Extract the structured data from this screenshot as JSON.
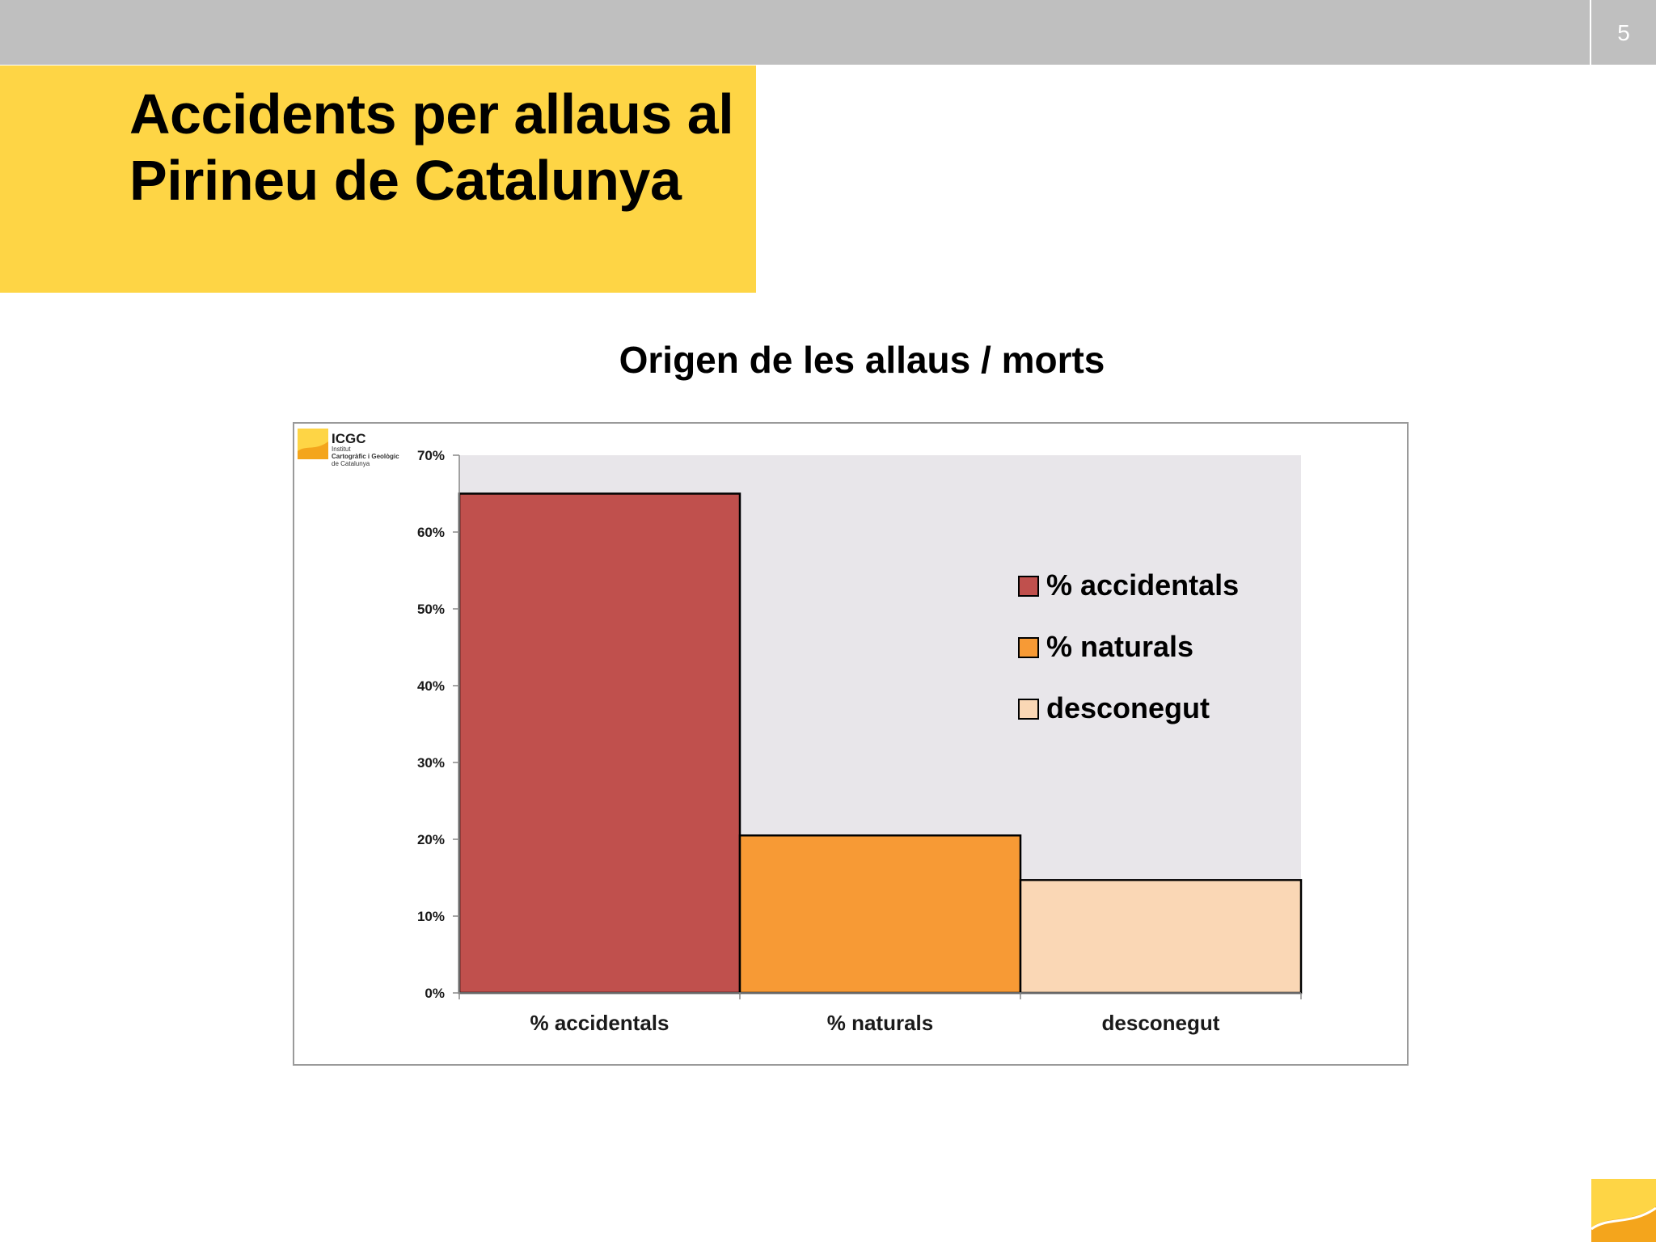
{
  "slide": {
    "page_number": "5",
    "title": "Accidents per allaus al Pirineu de Catalunya",
    "colors": {
      "topbar": "#bfbfbf",
      "title_box": "#fed545",
      "accent": "#f4a51c"
    }
  },
  "logo": {
    "name": "ICGC",
    "line1": "Institut",
    "line2": "Cartogràfic i Geològic",
    "line3": "de Catalunya",
    "icon": "icgc-logo-icon"
  },
  "chart_data": {
    "type": "bar",
    "title": "Origen de les allaus / morts",
    "categories": [
      "% accidentals",
      "% naturals",
      "desconegut"
    ],
    "values": [
      0.65,
      0.205,
      0.147
    ],
    "colors": [
      "#c0504d",
      "#f79a35",
      "#fad7b5"
    ],
    "ylim": [
      0,
      0.7
    ],
    "yticks": [
      "0%",
      "10%",
      "20%",
      "30%",
      "40%",
      "50%",
      "60%",
      "70%"
    ],
    "xlabel": "",
    "ylabel": "",
    "legend": {
      "placement": "right",
      "entries": [
        "% accidentals",
        "% naturals",
        "desconegut"
      ]
    },
    "plot_background": "#e8e6ea",
    "grid": false
  }
}
